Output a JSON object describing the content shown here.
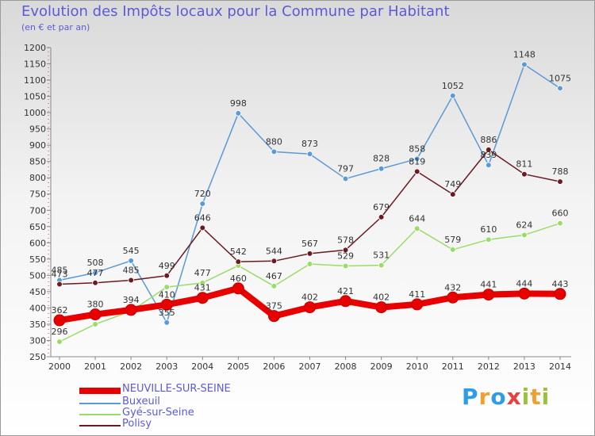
{
  "title": "Evolution des Impôts locaux pour la Commune par Habitant",
  "subtitle": "(en € et par an)",
  "brand": {
    "letters": [
      "P",
      "r",
      "o",
      "x",
      "i",
      "t",
      "i"
    ],
    "colors": [
      "#2e9de4",
      "#f0a030",
      "#2e9de4",
      "#e84040",
      "#9ac33c",
      "#f0a030",
      "#9ac33c"
    ]
  },
  "chart_data": {
    "type": "line",
    "title": "Evolution des Impôts locaux pour la Commune par Habitant",
    "subtitle": "(en € et par an)",
    "xlabel": "",
    "ylabel": "",
    "x": [
      "2000",
      "2001",
      "2002",
      "2003",
      "2004",
      "2005",
      "2006",
      "2007",
      "2008",
      "2009",
      "2010",
      "2011",
      "2012",
      "2013",
      "2014"
    ],
    "ylim": [
      250,
      1200
    ],
    "yticks": [
      250,
      300,
      350,
      400,
      450,
      500,
      550,
      600,
      650,
      700,
      750,
      800,
      850,
      900,
      950,
      1000,
      1050,
      1100,
      1150,
      1200
    ],
    "grid": false,
    "legend_position": "bottom-left",
    "series": [
      {
        "name": "NEUVILLE-SUR-SEINE",
        "color": "#e80000",
        "values": [
          362,
          380,
          394,
          410,
          431,
          460,
          375,
          402,
          421,
          402,
          411,
          432,
          441,
          444,
          443
        ]
      },
      {
        "name": "Buxeuil",
        "color": "#5a9ad6",
        "values": [
          485,
          508,
          545,
          355,
          720,
          998,
          880,
          873,
          797,
          828,
          858,
          1052,
          839,
          1148,
          1075
        ]
      },
      {
        "name": "Gyé-sur-Seine",
        "color": "#99dd66",
        "values": [
          296,
          350,
          390,
          464,
          477,
          530,
          467,
          535,
          529,
          531,
          644,
          579,
          610,
          624,
          660
        ]
      },
      {
        "name": "Polisy",
        "color": "#6a1a20",
        "values": [
          473,
          477,
          485,
          499,
          646,
          542,
          544,
          567,
          578,
          679,
          819,
          749,
          886,
          811,
          788
        ]
      }
    ],
    "data_labels": [
      {
        "series": "NEUVILLE-SUR-SEINE",
        "labels": [
          "362",
          "380",
          "394",
          "410",
          "431",
          "460",
          "375",
          "402",
          "421",
          "402",
          "411",
          "432",
          "441",
          "444",
          "443"
        ]
      },
      {
        "series": "Buxeuil",
        "labels": [
          "485",
          "508",
          "545",
          "355",
          "720",
          "998",
          "880",
          "873",
          "797",
          "828",
          "858",
          "1052",
          "839",
          "1148",
          "1075"
        ]
      },
      {
        "series": "Gyé-sur-Seine",
        "labels": [
          "296",
          "",
          "",
          "",
          "477",
          "",
          "467",
          "",
          "529",
          "531",
          "644",
          "579",
          "610",
          "624",
          "660"
        ]
      },
      {
        "series": "Polisy",
        "labels": [
          "473",
          "477",
          "485",
          "499",
          "646",
          "542",
          "544",
          "567",
          "578",
          "679",
          "819",
          "749",
          "886",
          "811",
          "788"
        ]
      }
    ]
  }
}
